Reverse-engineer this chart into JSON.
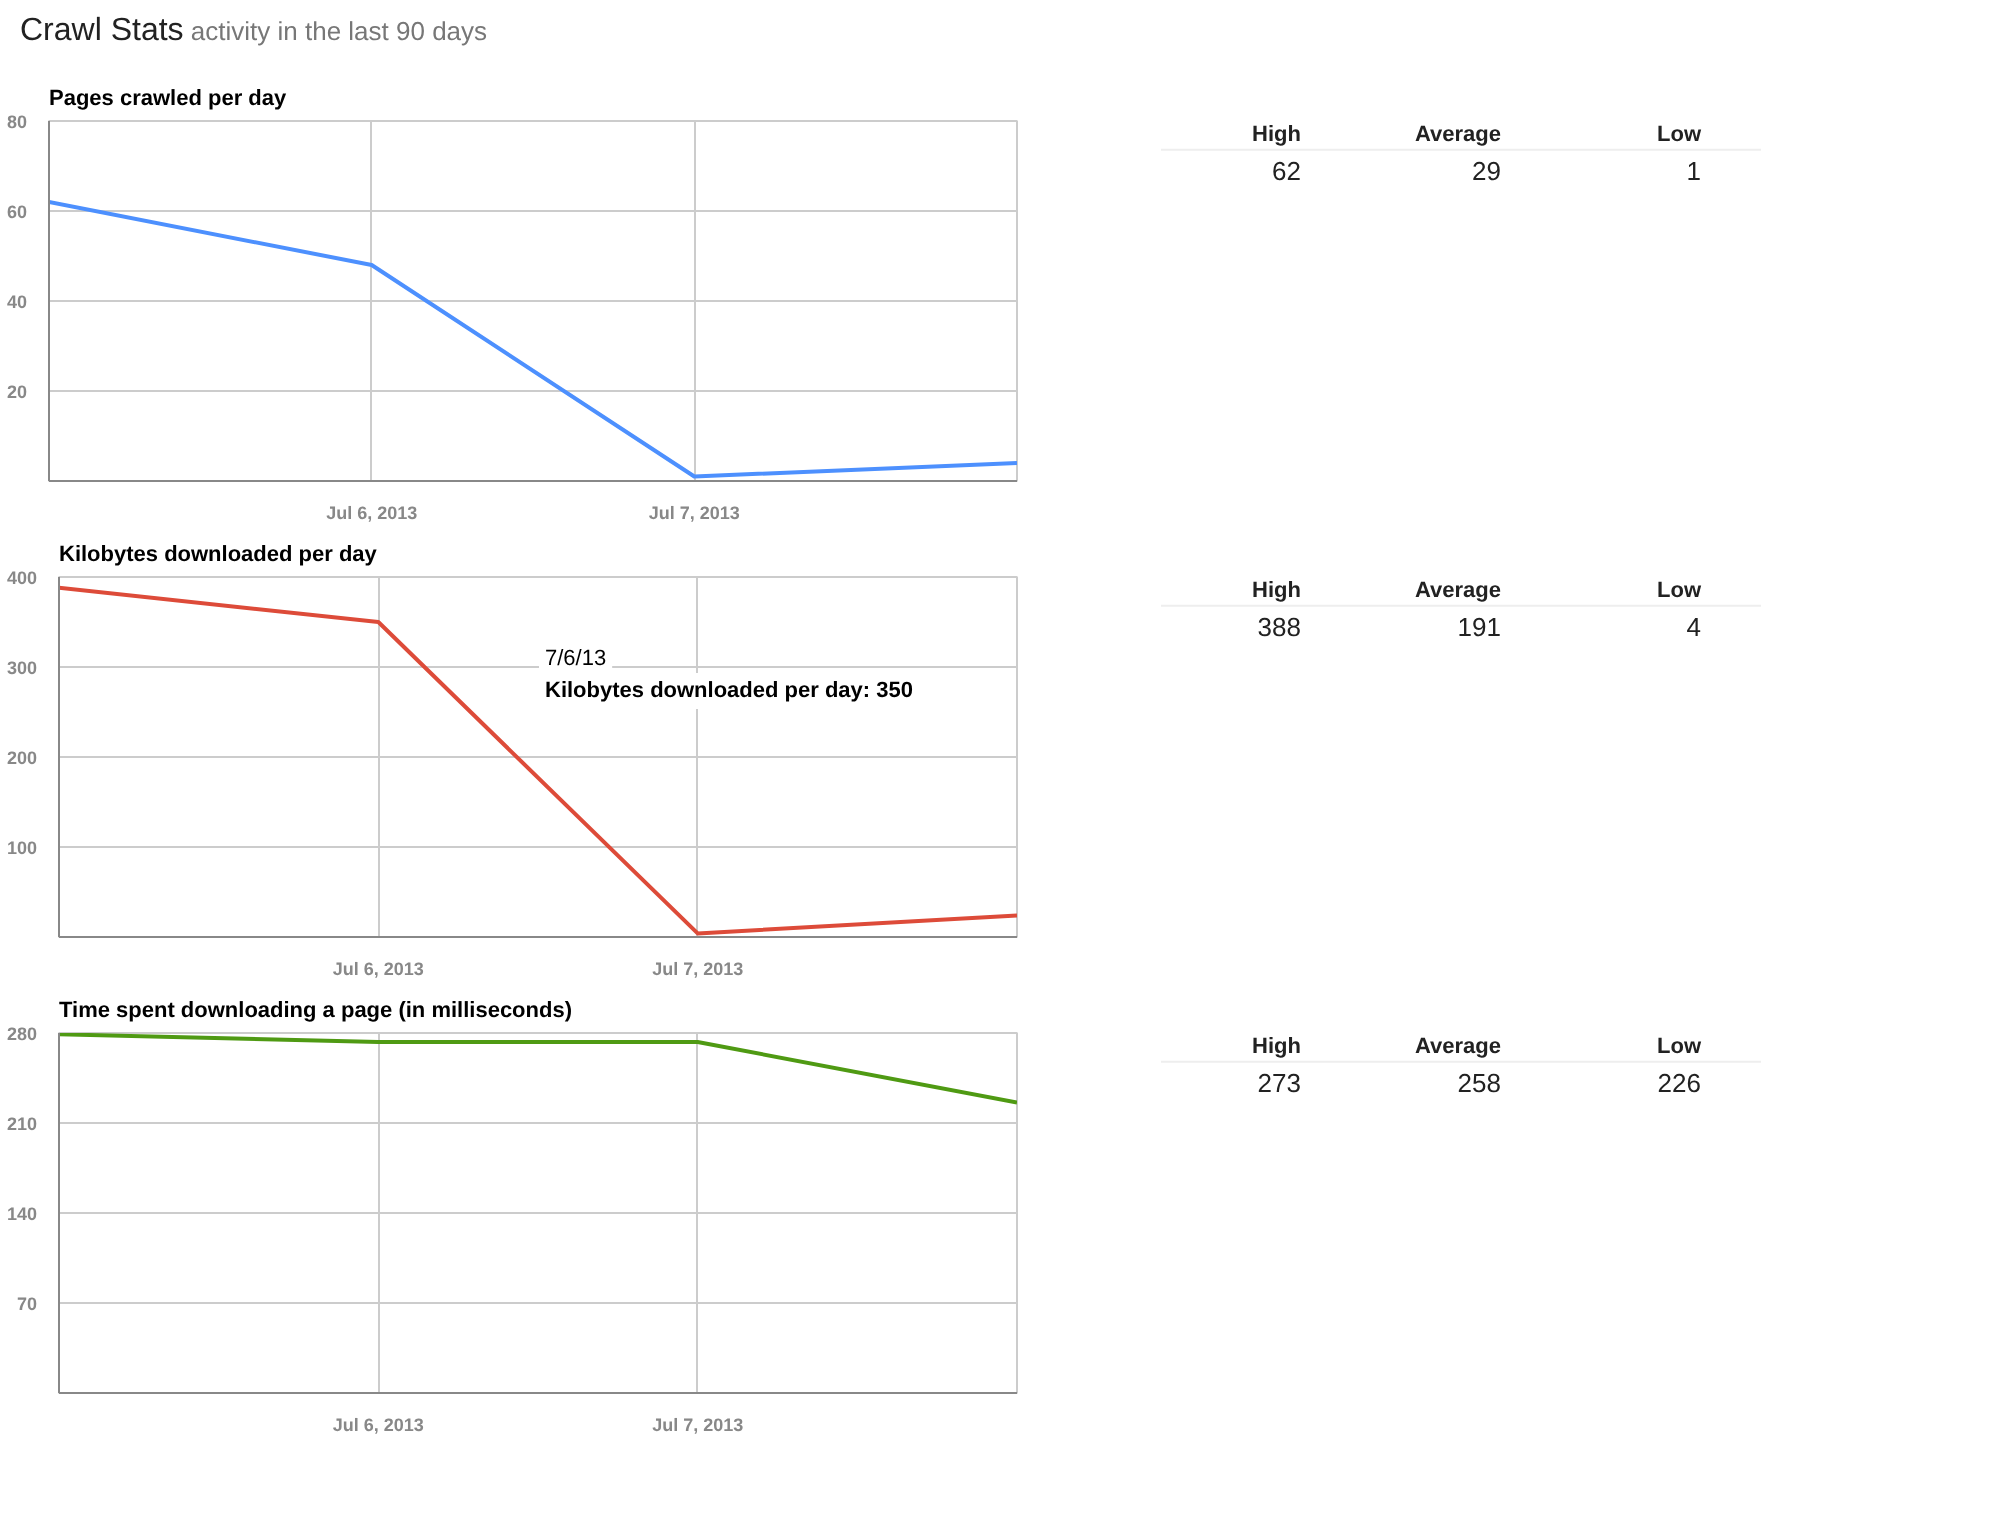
{
  "chart_data": [
    {
      "type": "line",
      "title": "Crawl Stats",
      "subtitle": "activity in the last 90 days",
      "ylabel": "Pages crawled per day",
      "x": [
        "2013-07-05",
        "2013-07-06",
        "2013-07-07",
        "2013-07-08"
      ],
      "series": [
        {
          "color": "#4d90fe",
          "values": [
            62,
            48,
            1,
            4
          ]
        }
      ],
      "xlim": [
        "2013-07-05",
        "2013-07-08"
      ],
      "xticks": [
        {
          "value": "2013-07-06",
          "label": "Jul 6, 2013"
        },
        {
          "value": "2013-07-07",
          "label": "Jul 7, 2013"
        }
      ],
      "ylim": [
        0,
        80
      ],
      "yticks": [
        20,
        40,
        60,
        80
      ],
      "grid": true
    },
    {
      "type": "other",
      "categories": [
        "High",
        "Average",
        "Low"
      ],
      "values": [
        62,
        29,
        1
      ],
      "data_labels": true
    },
    {
      "type": "line",
      "ylabel": "Kilobytes downloaded per day",
      "x": [
        "2013-07-05",
        "2013-07-06",
        "2013-07-07",
        "2013-07-08"
      ],
      "series": [
        {
          "color": "#dd4b39",
          "values": [
            388,
            350,
            4,
            24
          ]
        }
      ],
      "xlim": [
        "2013-07-05",
        "2013-07-08"
      ],
      "xticks": [
        {
          "value": "2013-07-06",
          "label": "Jul 6, 2013"
        },
        {
          "value": "2013-07-07",
          "label": "Jul 7, 2013"
        }
      ],
      "ylim": [
        0,
        400
      ],
      "yticks": [
        100,
        200,
        300,
        400
      ],
      "grid": true,
      "annotations": [
        "7/6/13",
        "Kilobytes downloaded per day: 350"
      ]
    },
    {
      "type": "other",
      "categories": [
        "High",
        "Average",
        "Low"
      ],
      "values": [
        388,
        191,
        4
      ],
      "data_labels": true
    },
    {
      "type": "line",
      "ylabel": "Time spent downloading a page (in milliseconds)",
      "x": [
        "2013-07-05",
        "2013-07-06",
        "2013-07-07",
        "2013-07-08"
      ],
      "series": [
        {
          "color": "#4f9a13",
          "values": [
            279,
            273,
            273,
            226
          ]
        }
      ],
      "xlim": [
        "2013-07-05",
        "2013-07-08"
      ],
      "xticks": [
        {
          "value": "2013-07-06",
          "label": "Jul 6, 2013"
        },
        {
          "value": "2013-07-07",
          "label": "Jul 7, 2013"
        }
      ],
      "ylim": [
        0,
        280
      ],
      "yticks": [
        70,
        140,
        210,
        280
      ],
      "grid": true
    },
    {
      "type": "other",
      "categories": [
        "High",
        "Average",
        "Low"
      ],
      "values": [
        273,
        258,
        226
      ],
      "data_labels": true
    }
  ]
}
